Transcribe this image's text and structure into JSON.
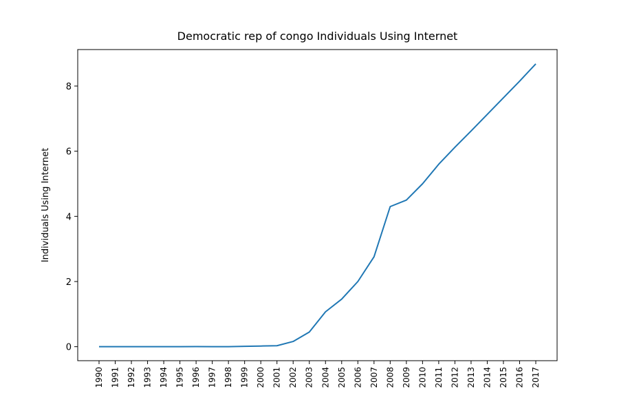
{
  "chart_data": {
    "type": "line",
    "title": "Democratic rep of congo Individuals Using Internet",
    "xlabel": "",
    "ylabel": "Individuals Using Internet",
    "x": [
      "1990",
      "1991",
      "1992",
      "1993",
      "1994",
      "1995",
      "1996",
      "1997",
      "1998",
      "1999",
      "2000",
      "2001",
      "2002",
      "2003",
      "2004",
      "2005",
      "2006",
      "2007",
      "2008",
      "2009",
      "2010",
      "2011",
      "2012",
      "2013",
      "2014",
      "2015",
      "2016",
      "2017"
    ],
    "series": [
      {
        "values": [
          0,
          0,
          0,
          0,
          0,
          0,
          0.002,
          0.001,
          0.001,
          0.012,
          0.02,
          0.03,
          0.16,
          0.45,
          1.07,
          1.46,
          2.0,
          2.76,
          4.3,
          4.5,
          5.0,
          5.6,
          6.12,
          6.62,
          7.13,
          7.64,
          8.15,
          8.68
        ],
        "color": "#1f77b4"
      }
    ],
    "ylim": [
      -0.43,
      9.12
    ],
    "yticks": [
      "0",
      "2",
      "4",
      "6",
      "8"
    ],
    "ytick_values": [
      0,
      2,
      4,
      6,
      8
    ],
    "grid": false,
    "legend": "none"
  }
}
